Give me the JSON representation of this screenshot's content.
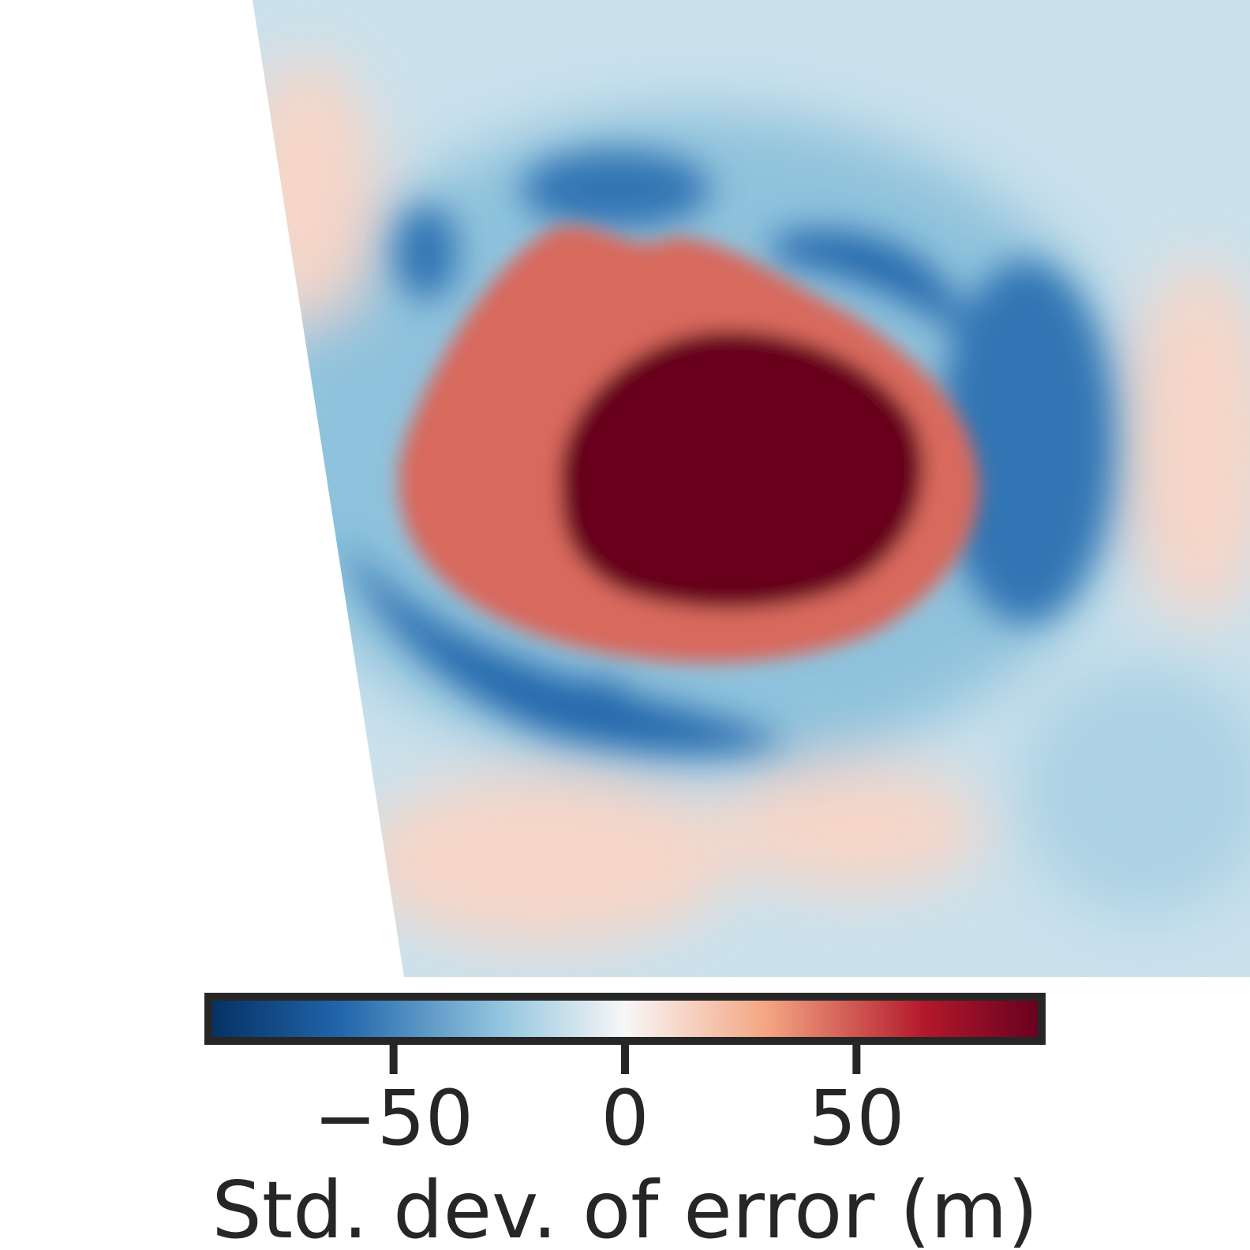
{
  "chart_data": {
    "type": "heatmap",
    "title": "",
    "colormap": "RdBu_r",
    "colors": {
      "min": "#053061",
      "low": "#2166ac",
      "mid_low": "#92c5de",
      "center": "#f7f7f7",
      "mid_high": "#f4a582",
      "high": "#b2182b",
      "max": "#67001f"
    },
    "colorbar": {
      "label": "Std. dev. of error (m)",
      "range": [
        -90,
        90
      ],
      "ticks": [
        {
          "value": -50,
          "label": "−50"
        },
        {
          "value": 0,
          "label": "0"
        },
        {
          "value": 50,
          "label": "50"
        }
      ],
      "orientation": "horizontal",
      "placement": "bottom"
    },
    "features": [
      {
        "name": "central-high",
        "value": 90
      },
      {
        "name": "inner-high-ring",
        "value": 45
      },
      {
        "name": "surrounding-low-ring",
        "value": -60
      },
      {
        "name": "background",
        "value": -12
      }
    ]
  }
}
